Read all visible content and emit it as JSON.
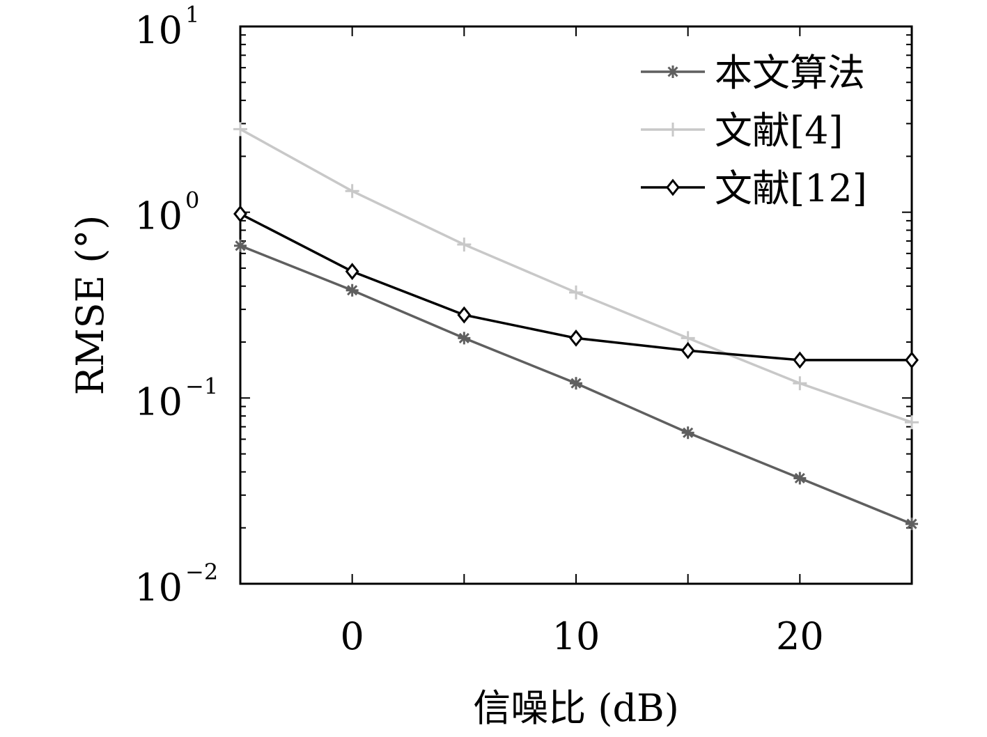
{
  "chart_data": {
    "type": "line",
    "xlabel": "信噪比 (dB)",
    "ylabel": "RMSE (°)",
    "xlim": [
      -5,
      25
    ],
    "ylim": [
      0.01,
      10
    ],
    "y_scale": "log",
    "x_ticks": [
      0,
      10,
      20
    ],
    "x_tick_labels": [
      "0",
      "10",
      "20"
    ],
    "y_ticks": [
      {
        "value": 10,
        "base": "10",
        "exp": "1"
      },
      {
        "value": 1,
        "base": "10",
        "exp": "0"
      },
      {
        "value": 0.1,
        "base": "10",
        "exp": "−1"
      },
      {
        "value": 0.01,
        "base": "10",
        "exp": "−2"
      }
    ],
    "grid": false,
    "legend_position": "top-right",
    "x": [
      -5,
      0,
      5,
      10,
      15,
      20,
      25
    ],
    "series": [
      {
        "name": "本文算法",
        "color": "#5f5f5f",
        "marker": "asterisk",
        "values": [
          0.66,
          0.38,
          0.21,
          0.12,
          0.065,
          0.037,
          0.021
        ]
      },
      {
        "name": "文献[4]",
        "color": "#c8c8c8",
        "marker": "plus",
        "values": [
          2.8,
          1.3,
          0.67,
          0.37,
          0.21,
          0.12,
          0.074
        ]
      },
      {
        "name": "文献[12]",
        "color": "#000000",
        "marker": "diamond",
        "values": [
          0.98,
          0.48,
          0.28,
          0.21,
          0.18,
          0.16,
          0.16
        ]
      }
    ]
  }
}
